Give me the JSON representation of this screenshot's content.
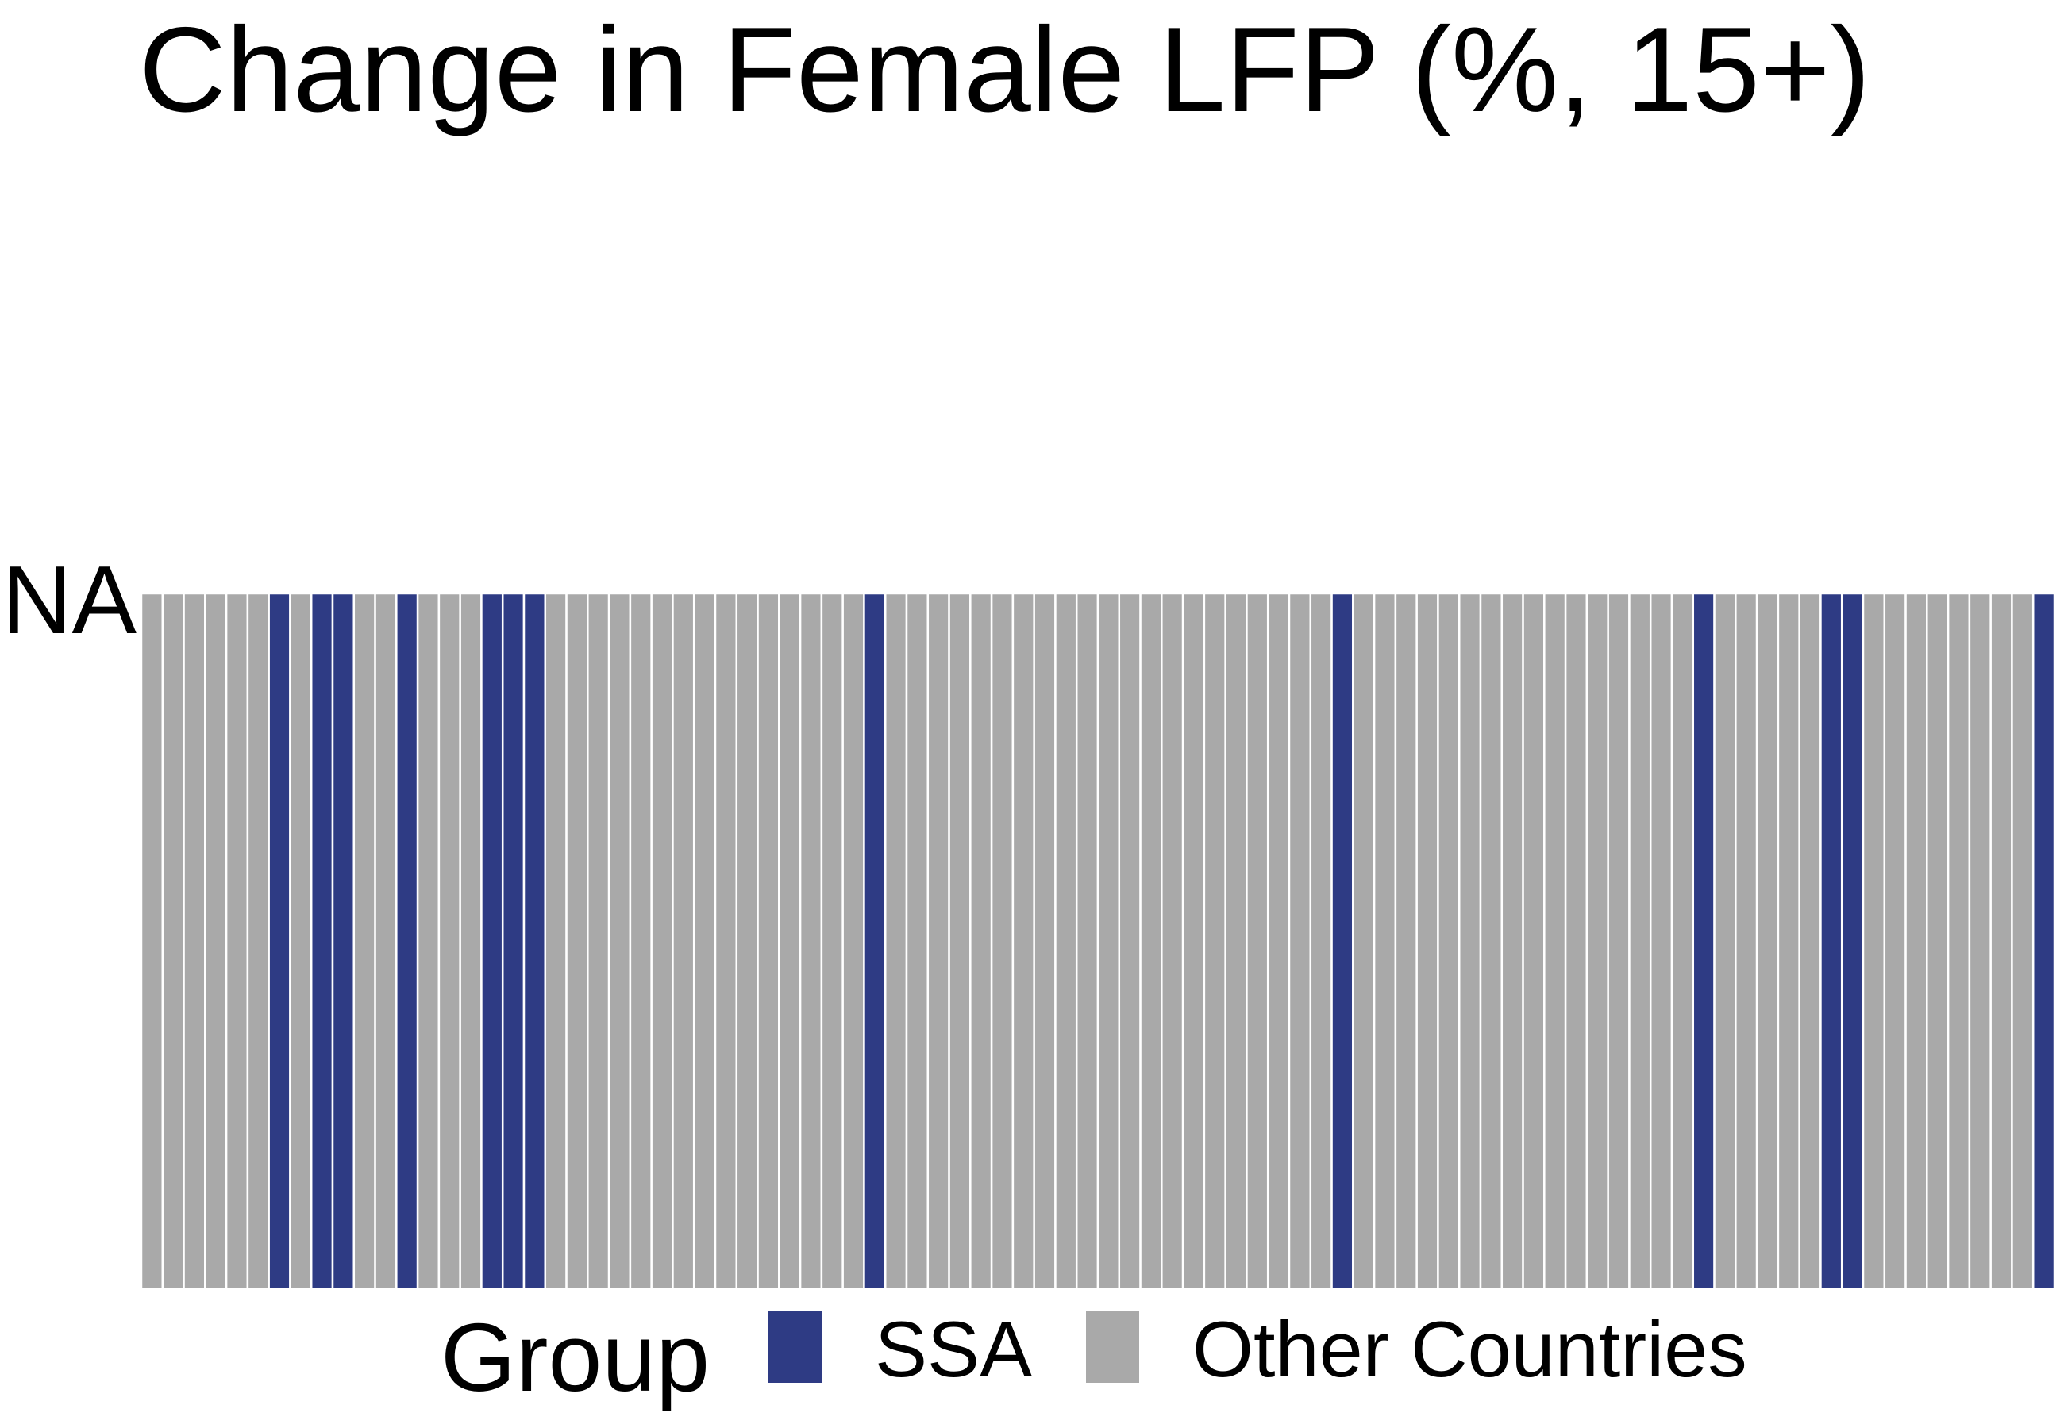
{
  "chart_data": {
    "type": "bar",
    "title": "Change in Female LFP (%, 15+)",
    "xlabel": "",
    "ylabel": "",
    "y_categories": [
      "NA"
    ],
    "orientation": "horizontal-stacked",
    "bar_count": 90,
    "ssa_bar_indices": [
      6,
      8,
      9,
      12,
      16,
      17,
      18,
      34,
      56,
      73,
      79,
      80,
      89
    ],
    "grid": false,
    "legend": {
      "title": "Group",
      "position": "bottom",
      "entries": [
        {
          "label": "SSA",
          "color": "#2e3b84"
        },
        {
          "label": "Other Countries",
          "color": "#a9a9a9"
        }
      ]
    }
  },
  "colors": {
    "ssa": "#2e3b84",
    "other": "#a9a9a9",
    "separator": "#ffffff",
    "background": "#ffffff"
  }
}
